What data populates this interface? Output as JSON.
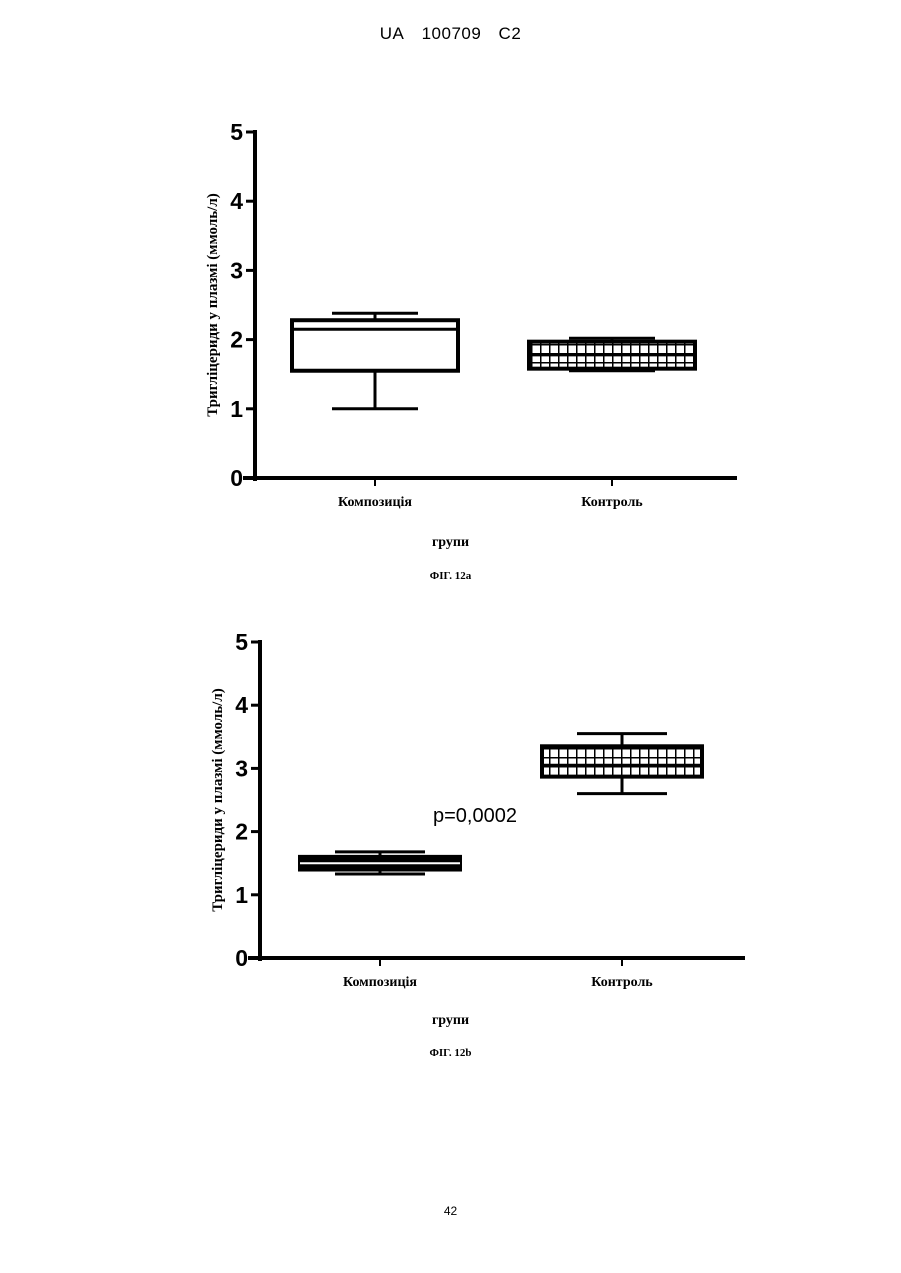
{
  "header": {
    "country": "UA",
    "number": "100709",
    "kind": "C2"
  },
  "page_number": "42",
  "chart_data": [
    {
      "type": "box",
      "ylabel": "Тригліцериди у плазмі (ммоль/л)",
      "xlabel": "групи",
      "caption": "ФІГ. 12а",
      "ylim": [
        0,
        5
      ],
      "yticks": [
        "0",
        "1",
        "2",
        "3",
        "4",
        "5"
      ],
      "categories": [
        "Композиція",
        "Контроль"
      ],
      "series": [
        {
          "category": "Композиція",
          "min": 1.0,
          "q1": 1.55,
          "median": 2.15,
          "q3": 2.28,
          "max": 2.38,
          "fill": "none"
        },
        {
          "category": "Контроль",
          "min": 1.55,
          "q1": 1.58,
          "median": 1.78,
          "q3": 1.97,
          "max": 2.02,
          "fill": "grid"
        }
      ],
      "annotation": ""
    },
    {
      "type": "box",
      "ylabel": "Тригліцериди у плазмі (ммоль/л)",
      "xlabel": "групи",
      "caption": "ФІГ. 12b",
      "ylim": [
        0,
        5
      ],
      "yticks": [
        "0",
        "1",
        "2",
        "3",
        "4",
        "5"
      ],
      "categories": [
        "Композиція",
        "Контроль"
      ],
      "series": [
        {
          "category": "Композиція",
          "min": 1.33,
          "q1": 1.4,
          "median": 1.5,
          "q3": 1.6,
          "max": 1.68,
          "fill": "solid"
        },
        {
          "category": "Контроль",
          "min": 2.6,
          "q1": 2.87,
          "median": 3.05,
          "q3": 3.35,
          "max": 3.55,
          "fill": "grid"
        }
      ],
      "annotation": "p=0,0002"
    }
  ]
}
